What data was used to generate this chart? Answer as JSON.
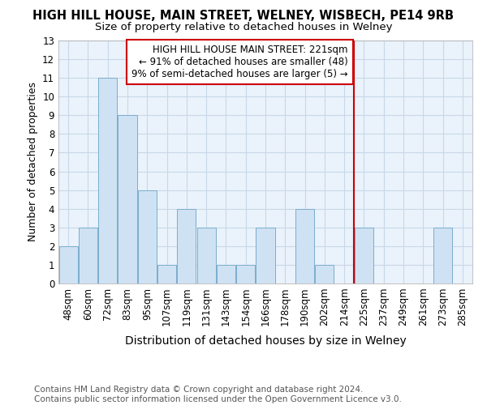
{
  "title": "HIGH HILL HOUSE, MAIN STREET, WELNEY, WISBECH, PE14 9RB",
  "subtitle": "Size of property relative to detached houses in Welney",
  "xlabel": "Distribution of detached houses by size in Welney",
  "ylabel": "Number of detached properties",
  "categories": [
    "48sqm",
    "60sqm",
    "72sqm",
    "83sqm",
    "95sqm",
    "107sqm",
    "119sqm",
    "131sqm",
    "143sqm",
    "154sqm",
    "166sqm",
    "178sqm",
    "190sqm",
    "202sqm",
    "214sqm",
    "225sqm",
    "237sqm",
    "249sqm",
    "261sqm",
    "273sqm",
    "285sqm"
  ],
  "values": [
    2,
    3,
    11,
    9,
    5,
    1,
    4,
    3,
    1,
    1,
    3,
    0,
    4,
    1,
    0,
    3,
    0,
    0,
    0,
    3,
    0
  ],
  "bar_color": "#cfe2f3",
  "bar_edge_color": "#7aadce",
  "grid_color": "#c8d8e8",
  "vline_color": "#cc0000",
  "annotation_text": "HIGH HILL HOUSE MAIN STREET: 221sqm\n← 91% of detached houses are smaller (48)\n9% of semi-detached houses are larger (5) →",
  "annotation_box_color": "#ffffff",
  "annotation_box_edge_color": "#cc0000",
  "bg_color": "#eaf2fb",
  "ylim": [
    0,
    13
  ],
  "yticks": [
    0,
    1,
    2,
    3,
    4,
    5,
    6,
    7,
    8,
    9,
    10,
    11,
    12,
    13
  ],
  "vline_index": 14.5,
  "footer": "Contains HM Land Registry data © Crown copyright and database right 2024.\nContains public sector information licensed under the Open Government Licence v3.0.",
  "title_fontsize": 10.5,
  "subtitle_fontsize": 9.5,
  "xlabel_fontsize": 10,
  "ylabel_fontsize": 9,
  "tick_fontsize": 8.5,
  "annotation_fontsize": 8.5,
  "footer_fontsize": 7.5
}
